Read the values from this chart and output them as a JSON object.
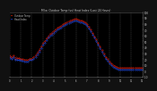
{
  "title": "Milw. Outdoor Temp (vs) Heat Index (Last 24 Hours)",
  "legend_temp": "Outdoor Temp",
  "legend_hi": "Heat Index",
  "background_color": "#111111",
  "plot_bg_color": "#000000",
  "grid_color": "#555555",
  "temp_color": "#ff2200",
  "hi_color": "#2255ff",
  "black_color": "#000000",
  "ylim": [
    -10,
    100
  ],
  "ytick_vals": [
    -10,
    0,
    10,
    20,
    30,
    40,
    50,
    60,
    70,
    80,
    90,
    100
  ],
  "ytick_labels": [
    "-10",
    "0",
    "10",
    "20",
    "30",
    "40",
    "50",
    "60",
    "70",
    "80",
    "90",
    "100"
  ],
  "temp_values": [
    25,
    27,
    24,
    22,
    26,
    23,
    21,
    24,
    22,
    20,
    22,
    19,
    21,
    18,
    20,
    19,
    19,
    18,
    19,
    18,
    19,
    20,
    21,
    22,
    21,
    22,
    23,
    25,
    27,
    29,
    31,
    33,
    36,
    38,
    41,
    44,
    47,
    49,
    51,
    53,
    55,
    57,
    59,
    61,
    63,
    64,
    65,
    67,
    68,
    69,
    71,
    72,
    73,
    74,
    75,
    76,
    77,
    78,
    79,
    80,
    81,
    82,
    83,
    84,
    84,
    85,
    86,
    86,
    87,
    87,
    88,
    87,
    88,
    87,
    87,
    87,
    86,
    86,
    85,
    85,
    84,
    83,
    82,
    81,
    79,
    77,
    75,
    73,
    70,
    67,
    65,
    62,
    59,
    56,
    53,
    50,
    47,
    44,
    41,
    38,
    35,
    32,
    29,
    27,
    24,
    22,
    20,
    18,
    16,
    14,
    12,
    11,
    10,
    9,
    8,
    7,
    6,
    6,
    5,
    5,
    5,
    5,
    5,
    5,
    5,
    5,
    5,
    5,
    5,
    5,
    5,
    5,
    5,
    5,
    5,
    5,
    5,
    5,
    5,
    5,
    5,
    5,
    5,
    5,
    5
  ],
  "hi_values": [
    22,
    24,
    21,
    19,
    23,
    20,
    18,
    21,
    19,
    17,
    19,
    16,
    18,
    15,
    17,
    16,
    16,
    15,
    16,
    15,
    16,
    17,
    18,
    19,
    18,
    19,
    20,
    22,
    24,
    26,
    28,
    30,
    33,
    35,
    38,
    41,
    44,
    46,
    48,
    50,
    52,
    54,
    56,
    58,
    60,
    61,
    62,
    64,
    65,
    66,
    68,
    69,
    70,
    71,
    72,
    73,
    74,
    75,
    76,
    77,
    78,
    79,
    80,
    81,
    81,
    82,
    83,
    83,
    84,
    84,
    85,
    84,
    85,
    84,
    84,
    84,
    83,
    83,
    82,
    82,
    81,
    80,
    79,
    78,
    76,
    74,
    72,
    70,
    67,
    64,
    62,
    59,
    56,
    53,
    50,
    47,
    44,
    41,
    38,
    35,
    32,
    29,
    26,
    24,
    21,
    19,
    17,
    15,
    13,
    11,
    9,
    8,
    7,
    6,
    5,
    4,
    3,
    3,
    2,
    2,
    2,
    2,
    2,
    2,
    2,
    2,
    2,
    2,
    2,
    2,
    2,
    2,
    2,
    2,
    2,
    2,
    2,
    2,
    2,
    2,
    2,
    2,
    2,
    2,
    2
  ],
  "n_points": 145,
  "x_grid_positions": [
    0,
    12,
    24,
    36,
    48,
    60,
    72,
    84,
    96,
    108,
    120,
    132,
    144
  ],
  "x_tick_labels": [
    "0",
    "1",
    "2",
    "3",
    "4",
    "5",
    "6",
    "7",
    "8",
    "9",
    "10",
    "11",
    "12"
  ]
}
